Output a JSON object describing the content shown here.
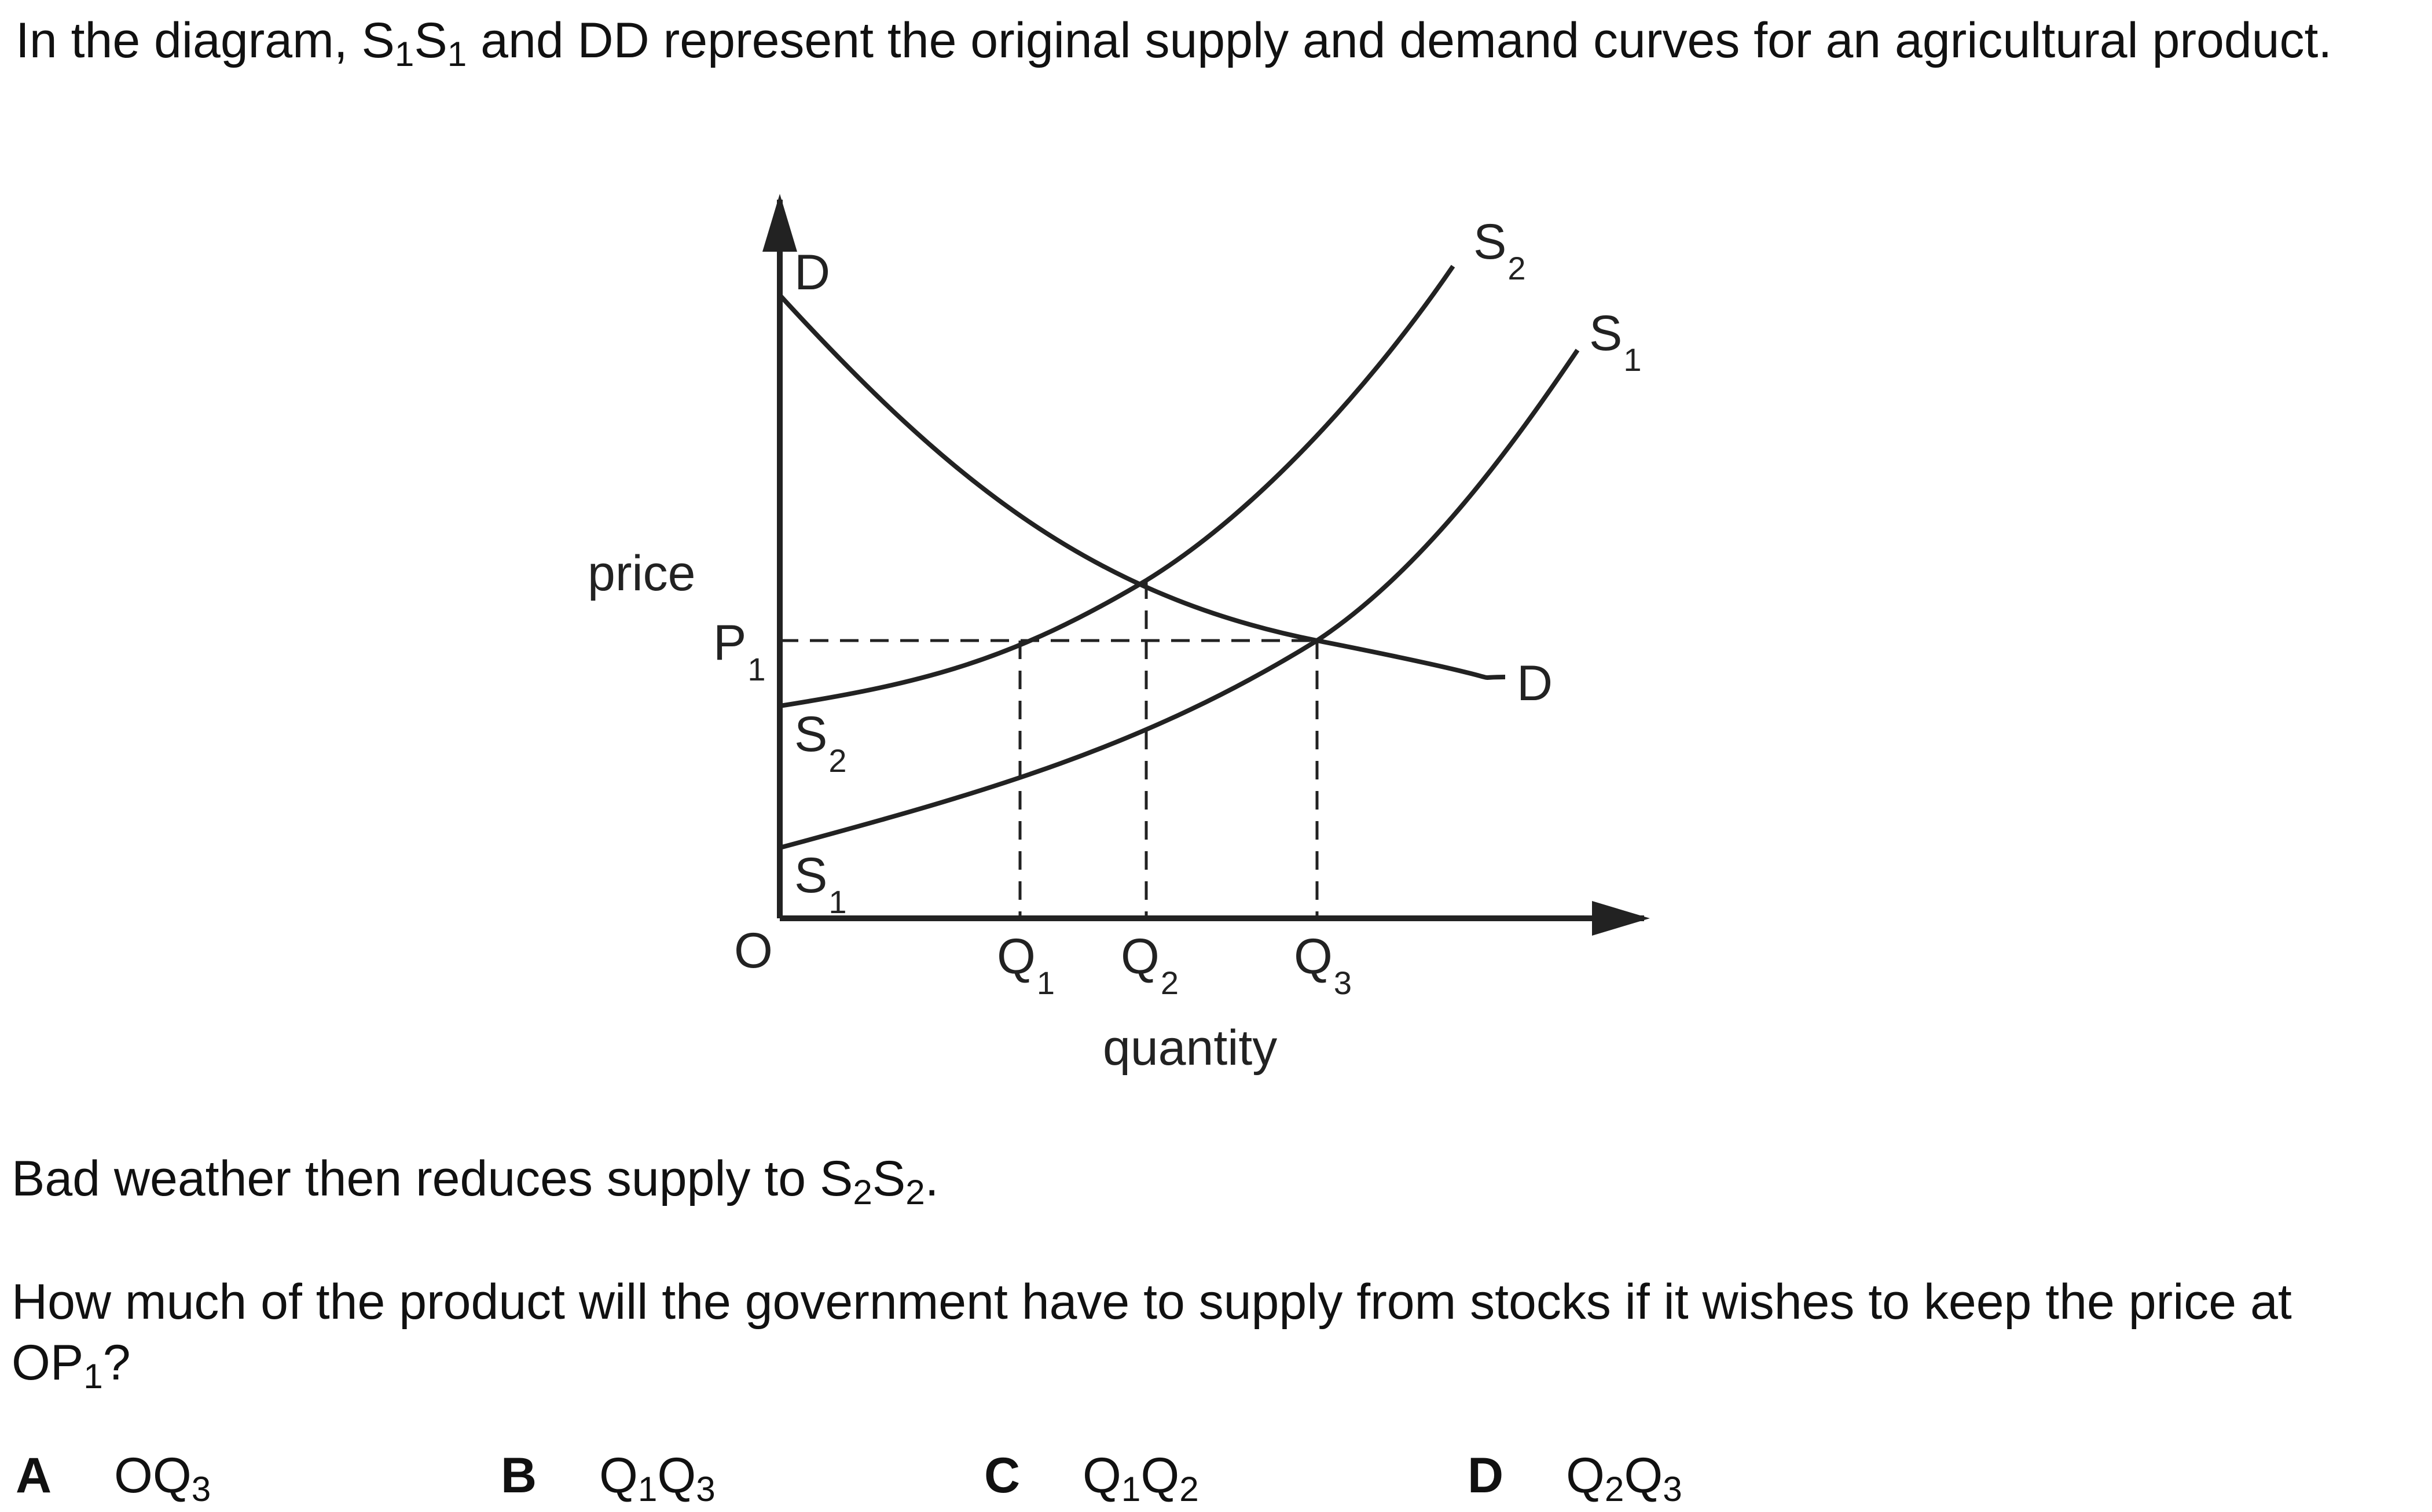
{
  "question": {
    "intro_pre": "In the diagram, S",
    "intro_sub1": "1",
    "intro_mid1": "S",
    "intro_sub2": "1",
    "intro_post": " and DD represent the original supply and demand curves for an agricultural product.",
    "bad_pre": "Bad weather then reduces supply to S",
    "bad_sub1": "2",
    "bad_mid": "S",
    "bad_sub2": "2",
    "bad_post": ".",
    "q_pre": "How much of the product will the government have to supply from stocks if it wishes to keep the price at OP",
    "q_sub": "1",
    "q_post": "?"
  },
  "options": [
    {
      "letter": "A",
      "p1": "OQ",
      "s1": "3",
      "p2": "",
      "s2": ""
    },
    {
      "letter": "B",
      "p1": "Q",
      "s1": "1",
      "p2": "Q",
      "s2": "3"
    },
    {
      "letter": "C",
      "p1": "Q",
      "s1": "1",
      "p2": "Q",
      "s2": "2"
    },
    {
      "letter": "D",
      "p1": "Q",
      "s1": "2",
      "p2": "Q",
      "s2": "3"
    }
  ],
  "diagram": {
    "y_axis_label": "price",
    "x_axis_label": "quantity",
    "origin_label": "O",
    "price_level": {
      "main": "P",
      "sub": "1"
    },
    "quantity_marks": [
      {
        "main": "Q",
        "sub": "1"
      },
      {
        "main": "Q",
        "sub": "2"
      },
      {
        "main": "Q",
        "sub": "3"
      }
    ],
    "curves": {
      "demand": {
        "label": "D"
      },
      "s1": {
        "main": "S",
        "sub": "1"
      },
      "s2": {
        "main": "S",
        "sub": "2"
      }
    },
    "line_color": "#222222"
  }
}
